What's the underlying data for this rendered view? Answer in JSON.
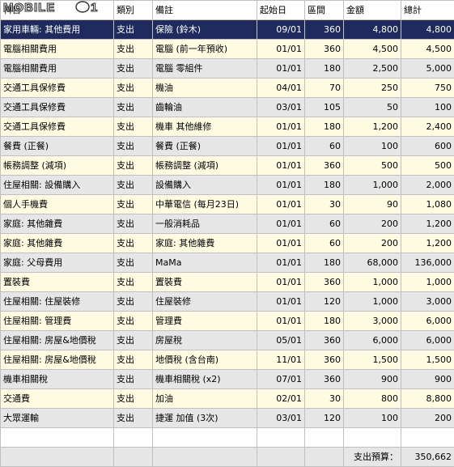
{
  "logo_text": "MOBILE01",
  "header": [
    "科目",
    "類別",
    "備註",
    "起始日",
    "區間",
    "金額",
    "總計"
  ],
  "rows": [
    [
      "家用車輛: 其他費用",
      "支出",
      "保險 (鈴木)",
      "09/01",
      "360",
      "4,800",
      "4,800"
    ],
    [
      "電腦相關費用",
      "支出",
      "電腦 (前一年預收)",
      "01/01",
      "360",
      "4,500",
      "4,500"
    ],
    [
      "電腦相關費用",
      "支出",
      "電腦 零組件",
      "01/01",
      "180",
      "2,500",
      "5,000"
    ],
    [
      "交通工具保修費",
      "支出",
      "機油",
      "04/01",
      "70",
      "250",
      "750"
    ],
    [
      "交通工具保修費",
      "支出",
      "齒輪油",
      "03/01",
      "105",
      "50",
      "100"
    ],
    [
      "交通工具保修費",
      "支出",
      "機車 其他維修",
      "01/01",
      "180",
      "1,200",
      "2,400"
    ],
    [
      "餐費 (正餐)",
      "支出",
      "餐費 (正餐)",
      "01/01",
      "60",
      "100",
      "600"
    ],
    [
      "帳務調整 (減項)",
      "支出",
      "帳務調整 (減項)",
      "01/01",
      "360",
      "500",
      "500"
    ],
    [
      "住屋相關: 設備購入",
      "支出",
      "設備購入",
      "01/01",
      "180",
      "1,000",
      "2,000"
    ],
    [
      "個人手機費",
      "支出",
      "中華電信 (每月23日)",
      "01/01",
      "30",
      "90",
      "1,080"
    ],
    [
      "家庭: 其他雜費",
      "支出",
      "一般消耗品",
      "01/01",
      "60",
      "200",
      "1,200"
    ],
    [
      "家庭: 其他雜費",
      "支出",
      "家庭: 其他雜費",
      "01/01",
      "60",
      "200",
      "1,200"
    ],
    [
      "家庭: 父母費用",
      "支出",
      "MaMa",
      "01/01",
      "180",
      "68,000",
      "136,000"
    ],
    [
      "置裝費",
      "支出",
      "置裝費",
      "01/01",
      "360",
      "1,000",
      "1,000"
    ],
    [
      "住屋相關: 住屋裝修",
      "支出",
      "住屋裝修",
      "01/01",
      "120",
      "1,000",
      "3,000"
    ],
    [
      "住屋相關: 管理費",
      "支出",
      "管理費",
      "01/01",
      "180",
      "3,000",
      "6,000"
    ],
    [
      "住屋相關: 房屋&地價稅",
      "支出",
      "房屋稅",
      "05/01",
      "360",
      "6,000",
      "6,000"
    ],
    [
      "住屋相關: 房屋&地價稅",
      "支出",
      "地價稅 (含台南)",
      "11/01",
      "360",
      "1,500",
      "1,500"
    ],
    [
      "機車相關稅",
      "支出",
      "機車相關稅 (x2)",
      "07/01",
      "360",
      "900",
      "900"
    ],
    [
      "交通費",
      "支出",
      "加油",
      "02/01",
      "30",
      "800",
      "8,800"
    ],
    [
      "大眾運輸",
      "支出",
      "捷運 加值 (3次)",
      "03/01",
      "120",
      "100",
      "200"
    ]
  ],
  "total_label": "支出預算：",
  "total_value": "350,662",
  "colors": {
    "selected_row": "#1f2a5e",
    "odd_row": "#fffbe3",
    "even_row": "#e6e6e6",
    "grid": "#c0c0c0"
  }
}
